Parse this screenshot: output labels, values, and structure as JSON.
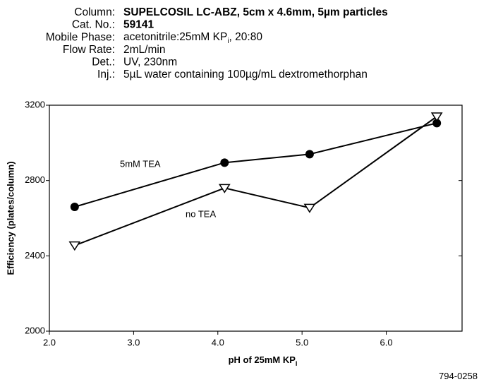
{
  "header": [
    {
      "label": "Column:",
      "value": "SUPELCOSIL LC-ABZ, 5cm x 4.6mm, 5µm particles"
    },
    {
      "label": "Cat. No.:",
      "value": "59141"
    },
    {
      "label": "Mobile Phase:",
      "value": "acetonitrile:25mM KP",
      "sub": "i",
      "tail": ", 20:80"
    },
    {
      "label": "Flow Rate:",
      "value": "2mL/min"
    },
    {
      "label": "Det.:",
      "value": "UV, 230nm"
    },
    {
      "label": "Inj.:",
      "value": "5µL water containing 100µg/mL dextromethorphan"
    }
  ],
  "chart_data": {
    "type": "line",
    "x_label": {
      "text": "pH of 25mM KP",
      "sub": "I"
    },
    "y_label": "Efficiency (plates/column)",
    "series": [
      {
        "name": "5mM TEA",
        "color": "#000000",
        "marker": "circle",
        "x": [
          2.3,
          4.08,
          5.09,
          6.6
        ],
        "values": [
          2660,
          2895,
          2940,
          3105
        ]
      },
      {
        "name": "no TEA",
        "color": "#000000",
        "marker": "triangle-down",
        "x": [
          2.3,
          4.08,
          5.09,
          6.6
        ],
        "values": [
          2455,
          2760,
          2655,
          3140
        ]
      }
    ],
    "xlim": [
      2.0,
      6.9
    ],
    "xticks": [
      {
        "value": 2,
        "label": "2.0"
      },
      {
        "value": 3,
        "label": "3.0"
      },
      {
        "value": 4,
        "label": "4.0"
      },
      {
        "value": 5,
        "label": "5.0"
      },
      {
        "value": 6,
        "label": "6.0"
      }
    ],
    "ylim": [
      2000,
      3200
    ],
    "yticks": [
      2000,
      2400,
      2800,
      3200
    ],
    "grid": false
  },
  "footnote": "794-0258"
}
